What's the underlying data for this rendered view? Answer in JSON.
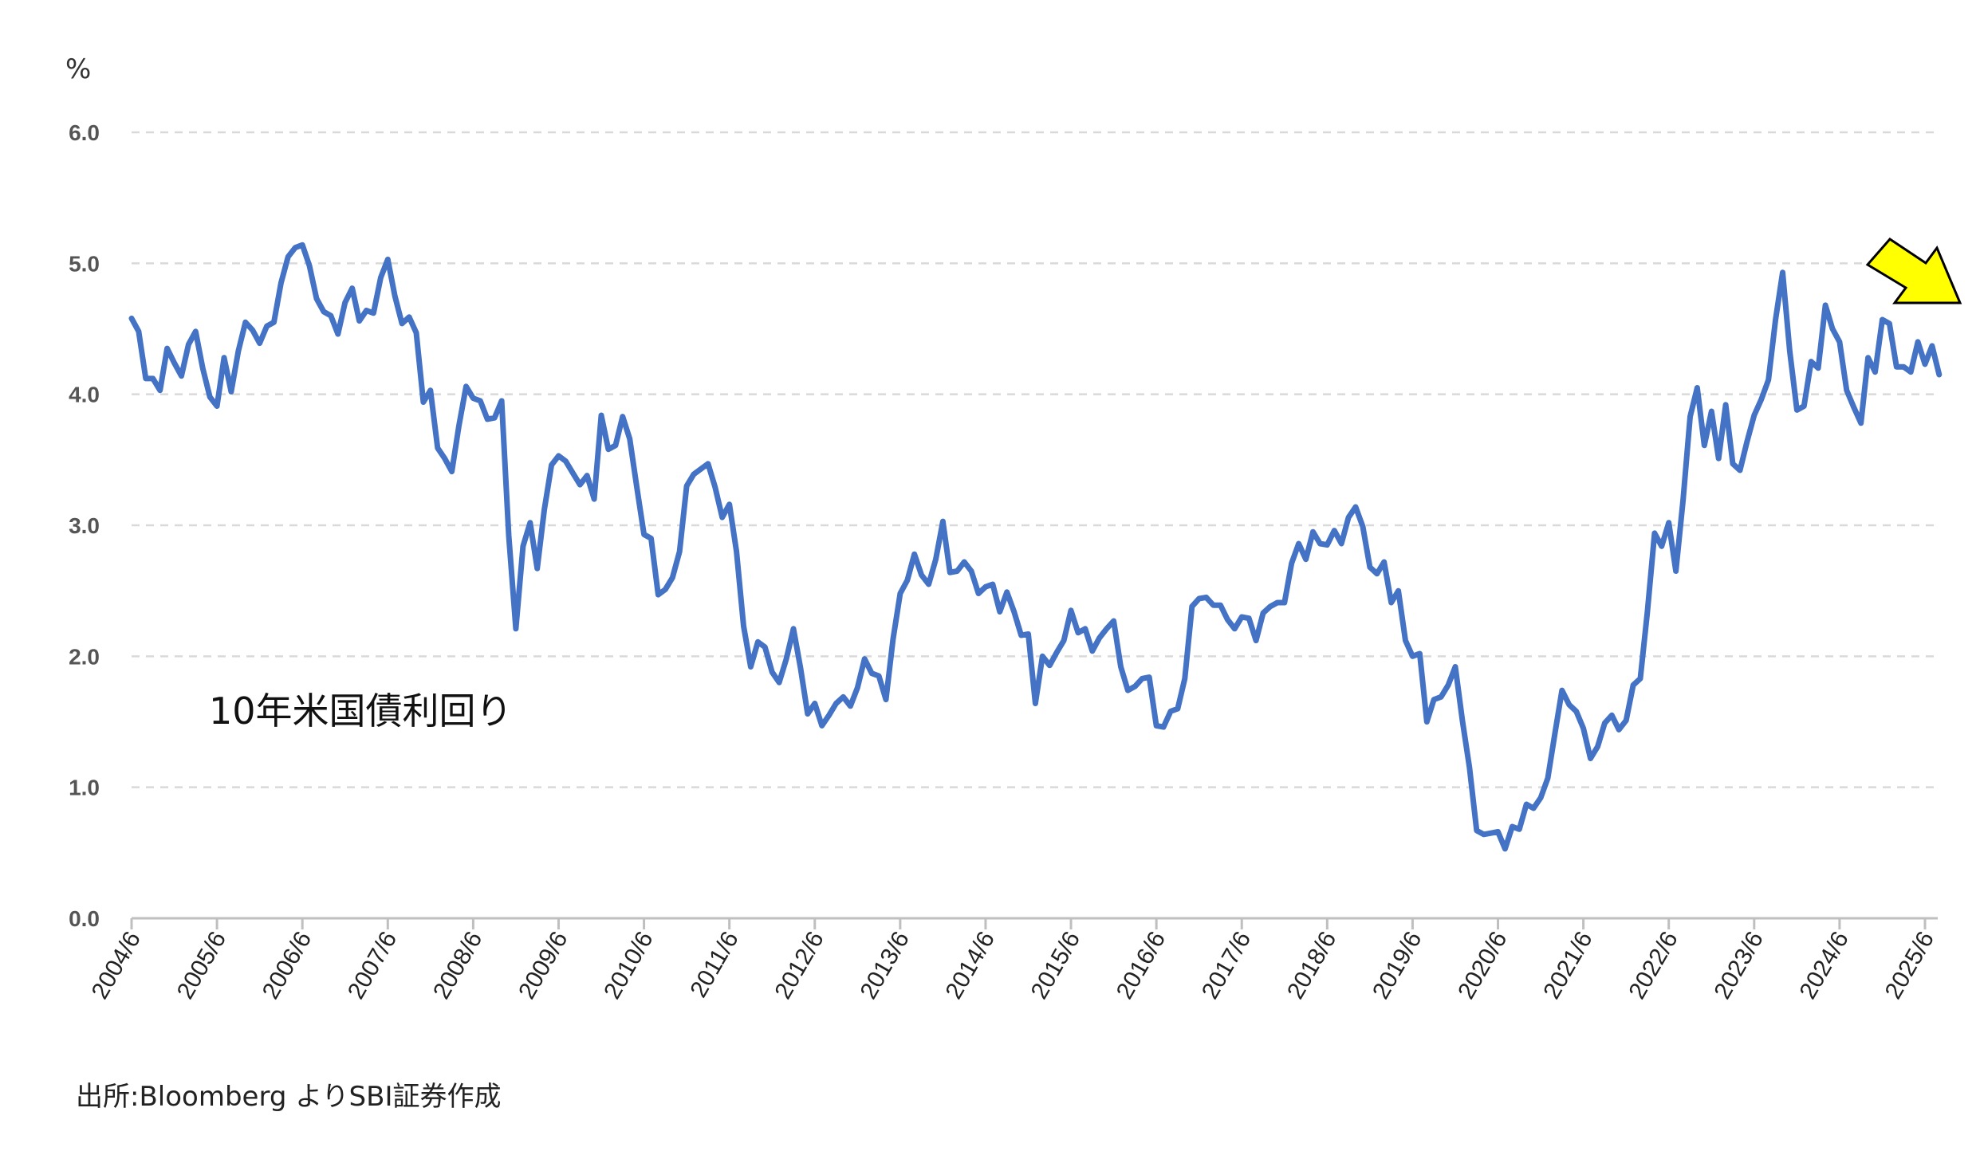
{
  "chart_data": {
    "type": "line",
    "ylabel": "%",
    "ylim": [
      0,
      6
    ],
    "yticks": [
      "0.0",
      "1.0",
      "2.0",
      "3.0",
      "4.0",
      "5.0",
      "6.0"
    ],
    "xticks": [
      "2004/6",
      "2005/6",
      "2006/6",
      "2007/6",
      "2008/6",
      "2009/6",
      "2010/6",
      "2011/6",
      "2012/6",
      "2013/6",
      "2014/6",
      "2015/6",
      "2016/6",
      "2017/6",
      "2018/6",
      "2019/6",
      "2020/6",
      "2021/6",
      "2022/6",
      "2023/6",
      "2024/6",
      "2025/6"
    ],
    "grid": true,
    "legend": "none",
    "series_label": "10年米国債利回り",
    "source": "出所:Bloomberg よりSBI証券作成",
    "line_color": "#4472C4",
    "arrow_color": "#FFFF00",
    "series": [
      {
        "name": "10年米国債利回り",
        "points": [
          [
            "2004/6",
            4.58
          ],
          [
            "2004/7",
            4.48
          ],
          [
            "2004/8",
            4.12
          ],
          [
            "2004/9",
            4.12
          ],
          [
            "2004/10",
            4.03
          ],
          [
            "2004/11",
            4.35
          ],
          [
            "2004/12",
            4.24
          ],
          [
            "2005/1",
            4.14
          ],
          [
            "2005/2",
            4.38
          ],
          [
            "2005/3",
            4.48
          ],
          [
            "2005/4",
            4.2
          ],
          [
            "2005/5",
            3.98
          ],
          [
            "2005/6",
            3.91
          ],
          [
            "2005/7",
            4.28
          ],
          [
            "2005/8",
            4.02
          ],
          [
            "2005/9",
            4.33
          ],
          [
            "2005/10",
            4.55
          ],
          [
            "2005/11",
            4.49
          ],
          [
            "2005/12",
            4.39
          ],
          [
            "2006/1",
            4.52
          ],
          [
            "2006/2",
            4.55
          ],
          [
            "2006/3",
            4.85
          ],
          [
            "2006/4",
            5.05
          ],
          [
            "2006/5",
            5.12
          ],
          [
            "2006/6",
            5.14
          ],
          [
            "2006/7",
            4.98
          ],
          [
            "2006/8",
            4.73
          ],
          [
            "2006/9",
            4.63
          ],
          [
            "2006/10",
            4.6
          ],
          [
            "2006/11",
            4.46
          ],
          [
            "2006/12",
            4.7
          ],
          [
            "2007/1",
            4.81
          ],
          [
            "2007/2",
            4.56
          ],
          [
            "2007/3",
            4.64
          ],
          [
            "2007/4",
            4.62
          ],
          [
            "2007/5",
            4.89
          ],
          [
            "2007/6",
            5.03
          ],
          [
            "2007/7",
            4.75
          ],
          [
            "2007/8",
            4.54
          ],
          [
            "2007/9",
            4.59
          ],
          [
            "2007/10",
            4.47
          ],
          [
            "2007/11",
            3.94
          ],
          [
            "2007/12",
            4.03
          ],
          [
            "2008/1",
            3.59
          ],
          [
            "2008/2",
            3.51
          ],
          [
            "2008/3",
            3.41
          ],
          [
            "2008/4",
            3.76
          ],
          [
            "2008/5",
            4.06
          ],
          [
            "2008/6",
            3.97
          ],
          [
            "2008/7",
            3.95
          ],
          [
            "2008/8",
            3.81
          ],
          [
            "2008/9",
            3.82
          ],
          [
            "2008/10",
            3.95
          ],
          [
            "2008/11",
            2.92
          ],
          [
            "2008/12",
            2.21
          ],
          [
            "2009/1",
            2.84
          ],
          [
            "2009/2",
            3.02
          ],
          [
            "2009/3",
            2.67
          ],
          [
            "2009/4",
            3.12
          ],
          [
            "2009/5",
            3.46
          ],
          [
            "2009/6",
            3.53
          ],
          [
            "2009/7",
            3.49
          ],
          [
            "2009/8",
            3.4
          ],
          [
            "2009/9",
            3.31
          ],
          [
            "2009/10",
            3.38
          ],
          [
            "2009/11",
            3.2
          ],
          [
            "2009/12",
            3.84
          ],
          [
            "2010/1",
            3.58
          ],
          [
            "2010/2",
            3.61
          ],
          [
            "2010/3",
            3.83
          ],
          [
            "2010/4",
            3.66
          ],
          [
            "2010/5",
            3.29
          ],
          [
            "2010/6",
            2.93
          ],
          [
            "2010/7",
            2.9
          ],
          [
            "2010/8",
            2.47
          ],
          [
            "2010/9",
            2.51
          ],
          [
            "2010/10",
            2.6
          ],
          [
            "2010/11",
            2.8
          ],
          [
            "2010/12",
            3.3
          ],
          [
            "2011/1",
            3.39
          ],
          [
            "2011/2",
            3.43
          ],
          [
            "2011/3",
            3.47
          ],
          [
            "2011/4",
            3.29
          ],
          [
            "2011/5",
            3.06
          ],
          [
            "2011/6",
            3.16
          ],
          [
            "2011/7",
            2.8
          ],
          [
            "2011/8",
            2.23
          ],
          [
            "2011/9",
            1.92
          ],
          [
            "2011/10",
            2.11
          ],
          [
            "2011/11",
            2.07
          ],
          [
            "2011/12",
            1.88
          ],
          [
            "2012/1",
            1.8
          ],
          [
            "2012/2",
            1.98
          ],
          [
            "2012/3",
            2.21
          ],
          [
            "2012/4",
            1.91
          ],
          [
            "2012/5",
            1.56
          ],
          [
            "2012/6",
            1.64
          ],
          [
            "2012/7",
            1.47
          ],
          [
            "2012/8",
            1.55
          ],
          [
            "2012/9",
            1.64
          ],
          [
            "2012/10",
            1.69
          ],
          [
            "2012/11",
            1.62
          ],
          [
            "2012/12",
            1.76
          ],
          [
            "2013/1",
            1.98
          ],
          [
            "2013/2",
            1.87
          ],
          [
            "2013/3",
            1.85
          ],
          [
            "2013/4",
            1.67
          ],
          [
            "2013/5",
            2.13
          ],
          [
            "2013/6",
            2.48
          ],
          [
            "2013/7",
            2.58
          ],
          [
            "2013/8",
            2.78
          ],
          [
            "2013/9",
            2.62
          ],
          [
            "2013/10",
            2.55
          ],
          [
            "2013/11",
            2.74
          ],
          [
            "2013/12",
            3.03
          ],
          [
            "2014/1",
            2.64
          ],
          [
            "2014/2",
            2.65
          ],
          [
            "2014/3",
            2.72
          ],
          [
            "2014/4",
            2.65
          ],
          [
            "2014/5",
            2.48
          ],
          [
            "2014/6",
            2.53
          ],
          [
            "2014/7",
            2.55
          ],
          [
            "2014/8",
            2.34
          ],
          [
            "2014/9",
            2.49
          ],
          [
            "2014/10",
            2.34
          ],
          [
            "2014/11",
            2.16
          ],
          [
            "2014/12",
            2.17
          ],
          [
            "2015/1",
            1.64
          ],
          [
            "2015/2",
            2.0
          ],
          [
            "2015/3",
            1.93
          ],
          [
            "2015/4",
            2.03
          ],
          [
            "2015/5",
            2.12
          ],
          [
            "2015/6",
            2.35
          ],
          [
            "2015/7",
            2.18
          ],
          [
            "2015/8",
            2.21
          ],
          [
            "2015/9",
            2.04
          ],
          [
            "2015/10",
            2.14
          ],
          [
            "2015/11",
            2.21
          ],
          [
            "2015/12",
            2.27
          ],
          [
            "2016/1",
            1.92
          ],
          [
            "2016/2",
            1.74
          ],
          [
            "2016/3",
            1.77
          ],
          [
            "2016/4",
            1.83
          ],
          [
            "2016/5",
            1.84
          ],
          [
            "2016/6",
            1.47
          ],
          [
            "2016/7",
            1.46
          ],
          [
            "2016/8",
            1.58
          ],
          [
            "2016/9",
            1.6
          ],
          [
            "2016/10",
            1.83
          ],
          [
            "2016/11",
            2.38
          ],
          [
            "2016/12",
            2.44
          ],
          [
            "2017/1",
            2.45
          ],
          [
            "2017/2",
            2.39
          ],
          [
            "2017/3",
            2.39
          ],
          [
            "2017/4",
            2.28
          ],
          [
            "2017/5",
            2.21
          ],
          [
            "2017/6",
            2.3
          ],
          [
            "2017/7",
            2.29
          ],
          [
            "2017/8",
            2.12
          ],
          [
            "2017/9",
            2.33
          ],
          [
            "2017/10",
            2.38
          ],
          [
            "2017/11",
            2.41
          ],
          [
            "2017/12",
            2.41
          ],
          [
            "2018/1",
            2.71
          ],
          [
            "2018/2",
            2.86
          ],
          [
            "2018/3",
            2.74
          ],
          [
            "2018/4",
            2.95
          ],
          [
            "2018/5",
            2.86
          ],
          [
            "2018/6",
            2.85
          ],
          [
            "2018/7",
            2.96
          ],
          [
            "2018/8",
            2.86
          ],
          [
            "2018/9",
            3.06
          ],
          [
            "2018/10",
            3.14
          ],
          [
            "2018/11",
            2.99
          ],
          [
            "2018/12",
            2.68
          ],
          [
            "2019/1",
            2.63
          ],
          [
            "2019/2",
            2.72
          ],
          [
            "2019/3",
            2.41
          ],
          [
            "2019/4",
            2.5
          ],
          [
            "2019/5",
            2.12
          ],
          [
            "2019/6",
            2.0
          ],
          [
            "2019/7",
            2.02
          ],
          [
            "2019/8",
            1.5
          ],
          [
            "2019/9",
            1.67
          ],
          [
            "2019/10",
            1.69
          ],
          [
            "2019/11",
            1.78
          ],
          [
            "2019/12",
            1.92
          ],
          [
            "2020/1",
            1.51
          ],
          [
            "2020/2",
            1.15
          ],
          [
            "2020/3",
            0.67
          ],
          [
            "2020/4",
            0.64
          ],
          [
            "2020/5",
            0.65
          ],
          [
            "2020/6",
            0.66
          ],
          [
            "2020/7",
            0.53
          ],
          [
            "2020/8",
            0.7
          ],
          [
            "2020/9",
            0.68
          ],
          [
            "2020/10",
            0.87
          ],
          [
            "2020/11",
            0.84
          ],
          [
            "2020/12",
            0.92
          ],
          [
            "2021/1",
            1.07
          ],
          [
            "2021/2",
            1.41
          ],
          [
            "2021/3",
            1.74
          ],
          [
            "2021/4",
            1.63
          ],
          [
            "2021/5",
            1.58
          ],
          [
            "2021/6",
            1.45
          ],
          [
            "2021/7",
            1.22
          ],
          [
            "2021/8",
            1.31
          ],
          [
            "2021/9",
            1.49
          ],
          [
            "2021/10",
            1.55
          ],
          [
            "2021/11",
            1.44
          ],
          [
            "2021/12",
            1.51
          ],
          [
            "2022/1",
            1.78
          ],
          [
            "2022/2",
            1.83
          ],
          [
            "2022/3",
            2.34
          ],
          [
            "2022/4",
            2.94
          ],
          [
            "2022/5",
            2.84
          ],
          [
            "2022/6",
            3.02
          ],
          [
            "2022/7",
            2.65
          ],
          [
            "2022/8",
            3.19
          ],
          [
            "2022/9",
            3.83
          ],
          [
            "2022/10",
            4.05
          ],
          [
            "2022/11",
            3.61
          ],
          [
            "2022/12",
            3.87
          ],
          [
            "2023/1",
            3.51
          ],
          [
            "2023/2",
            3.92
          ],
          [
            "2023/3",
            3.47
          ],
          [
            "2023/4",
            3.42
          ],
          [
            "2023/5",
            3.64
          ],
          [
            "2023/6",
            3.84
          ],
          [
            "2023/7",
            3.96
          ],
          [
            "2023/8",
            4.11
          ],
          [
            "2023/9",
            4.57
          ],
          [
            "2023/10",
            4.93
          ],
          [
            "2023/11",
            4.33
          ],
          [
            "2023/12",
            3.88
          ],
          [
            "2024/1",
            3.91
          ],
          [
            "2024/2",
            4.25
          ],
          [
            "2024/3",
            4.2
          ],
          [
            "2024/4",
            4.68
          ],
          [
            "2024/5",
            4.5
          ],
          [
            "2024/6",
            4.4
          ],
          [
            "2024/7",
            4.03
          ],
          [
            "2024/8",
            3.9
          ],
          [
            "2024/9",
            3.78
          ],
          [
            "2024/10",
            4.28
          ],
          [
            "2024/11",
            4.17
          ],
          [
            "2024/12",
            4.57
          ],
          [
            "2025/1",
            4.54
          ],
          [
            "2025/2",
            4.21
          ],
          [
            "2025/3",
            4.21
          ],
          [
            "2025/4",
            4.17
          ],
          [
            "2025/5",
            4.4
          ],
          [
            "2025/6",
            4.23
          ],
          [
            "2025/7",
            4.37
          ],
          [
            "2025/8",
            4.15
          ]
        ]
      }
    ]
  }
}
